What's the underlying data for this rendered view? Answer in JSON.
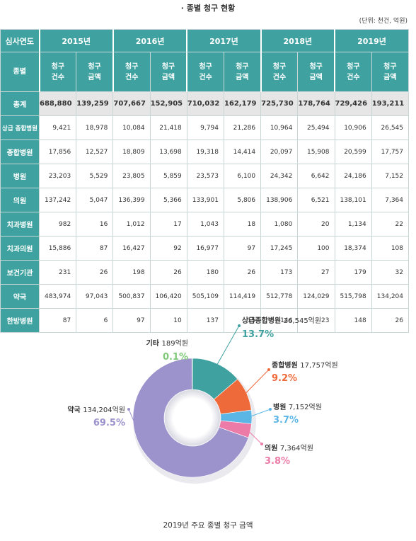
{
  "title": "· 종별 청구 현황",
  "unit": "(단위: 천건, 억원)",
  "table": {
    "corner_year": "심사연도",
    "corner_type": "종별",
    "years": [
      "2015년",
      "2016년",
      "2017년",
      "2018년",
      "2019년"
    ],
    "sub_headers": [
      "청구\n건수",
      "청구\n금액"
    ],
    "rows": [
      {
        "label": "총계",
        "values": [
          "688,880",
          "139,259",
          "707,667",
          "152,905",
          "710,032",
          "162,179",
          "725,730",
          "178,764",
          "729,426",
          "193,211"
        ]
      },
      {
        "label": "상급 종합병원",
        "values": [
          "9,421",
          "18,978",
          "10,084",
          "21,418",
          "9,794",
          "21,286",
          "10,964",
          "25,494",
          "10,906",
          "26,545"
        ]
      },
      {
        "label": "종합병원",
        "values": [
          "17,856",
          "12,527",
          "18,809",
          "13,698",
          "19,318",
          "14,414",
          "20,097",
          "15,908",
          "20,599",
          "17,757"
        ]
      },
      {
        "label": "병원",
        "values": [
          "23,203",
          "5,529",
          "23,805",
          "5,859",
          "23,573",
          "6,100",
          "24,342",
          "6,642",
          "24,186",
          "7,152"
        ]
      },
      {
        "label": "의원",
        "values": [
          "137,242",
          "5,047",
          "136,399",
          "5,366",
          "133,901",
          "5,806",
          "138,906",
          "6,521",
          "138,101",
          "7,364"
        ]
      },
      {
        "label": "치과병원",
        "values": [
          "982",
          "16",
          "1,012",
          "17",
          "1,043",
          "18",
          "1,080",
          "20",
          "1,134",
          "22"
        ]
      },
      {
        "label": "치과의원",
        "values": [
          "15,886",
          "87",
          "16,427",
          "92",
          "16,977",
          "97",
          "17,245",
          "100",
          "18,374",
          "108"
        ]
      },
      {
        "label": "보건기관",
        "values": [
          "231",
          "26",
          "198",
          "26",
          "180",
          "26",
          "173",
          "27",
          "179",
          "32"
        ]
      },
      {
        "label": "약국",
        "values": [
          "483,974",
          "97,043",
          "500,837",
          "106,420",
          "505,109",
          "114,419",
          "512,778",
          "124,029",
          "515,798",
          "134,204"
        ]
      },
      {
        "label": "한방병원",
        "values": [
          "87",
          "6",
          "97",
          "10",
          "137",
          "15",
          "144",
          "23",
          "148",
          "26"
        ]
      }
    ]
  },
  "chart_data": {
    "type": "pie",
    "title": "2019년 주요 종별 청구 금액",
    "donut": true,
    "series": [
      {
        "name": "상급종합병원",
        "amount_text": "26,545억원",
        "value": 26545,
        "percent": 13.7,
        "percent_text": "13.7%",
        "color": "#3fa2a0"
      },
      {
        "name": "종합병원",
        "amount_text": "17,757억원",
        "value": 17757,
        "percent": 9.2,
        "percent_text": "9.2%",
        "color": "#ef6a3a"
      },
      {
        "name": "병원",
        "amount_text": "7,152억원",
        "value": 7152,
        "percent": 3.7,
        "percent_text": "3.7%",
        "color": "#5bb6e6"
      },
      {
        "name": "의원",
        "amount_text": "7,364억원",
        "value": 7364,
        "percent": 3.8,
        "percent_text": "3.8%",
        "color": "#ec7ca7"
      },
      {
        "name": "약국",
        "amount_text": "134,204억원",
        "value": 134204,
        "percent": 69.5,
        "percent_text": "69.5%",
        "color": "#9d93cc"
      },
      {
        "name": "기타",
        "amount_text": "189억원",
        "value": 189,
        "percent": 0.1,
        "percent_text": "0.1%",
        "color": "#7fc97a"
      }
    ]
  }
}
